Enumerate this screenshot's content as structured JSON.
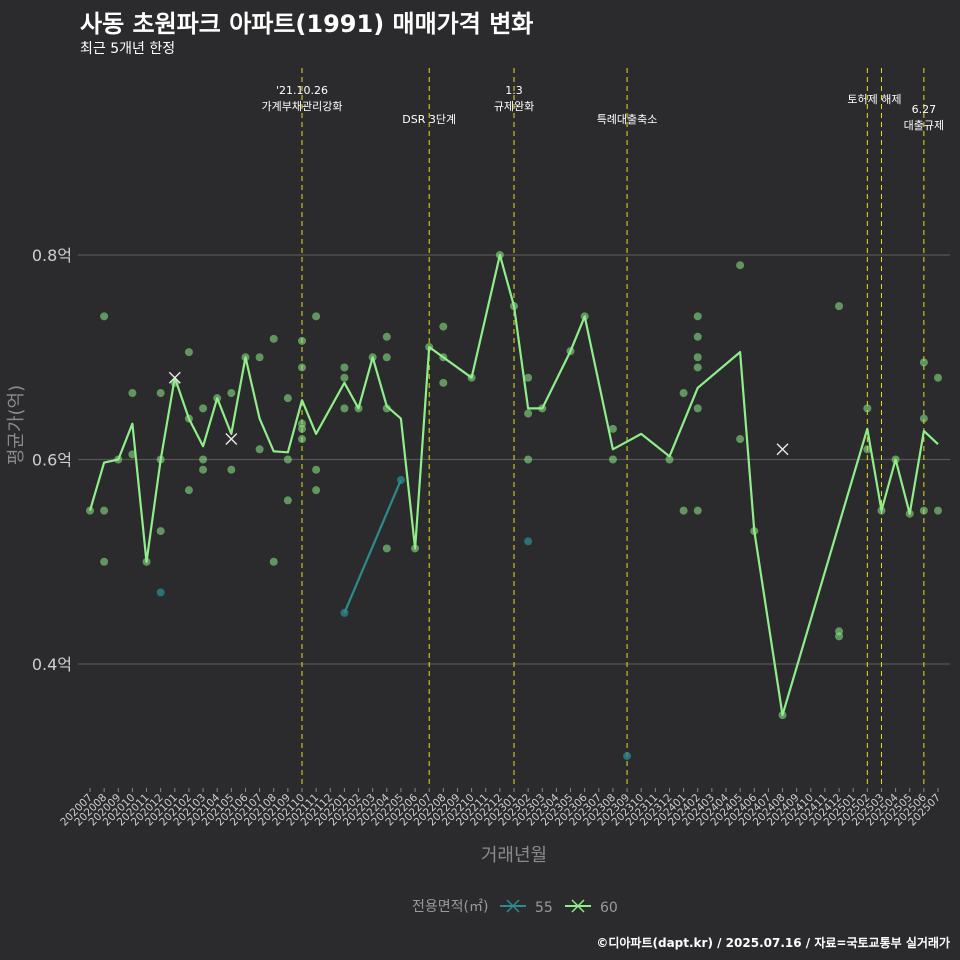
{
  "title": "사동 초원파크 아파트(1991) 매매가격 변화",
  "subtitle": "최근 5개년 한정",
  "caption": "©디아파트(dapt.kr) / 2025.07.16 / 자료=국토교통부 실거래가",
  "colors": {
    "background": "#2b2b2d",
    "grid": "#555555",
    "series_55": "#2a8c8c",
    "series_60": "#90ee8a",
    "event_line": "#e0e020"
  },
  "chart_data": {
    "type": "line",
    "xlabel": "거래년월",
    "ylabel": "평균가(억)",
    "ylim": [
      0.28,
      0.8
    ],
    "yticks": [
      0.4,
      0.6,
      0.8
    ],
    "ytick_labels": [
      "0.4억",
      "0.6억",
      "0.8억"
    ],
    "grid": true,
    "legend": {
      "position": "bottom",
      "title": "전용면적(㎡)",
      "items": [
        "55",
        "60"
      ]
    },
    "categories": [
      "202007",
      "202008",
      "202009",
      "202010",
      "202011",
      "202012",
      "202101",
      "202102",
      "202103",
      "202104",
      "202105",
      "202106",
      "202107",
      "202108",
      "202109",
      "202110",
      "202111",
      "202112",
      "202201",
      "202202",
      "202203",
      "202204",
      "202205",
      "202206",
      "202207",
      "202208",
      "202209",
      "202210",
      "202211",
      "202212",
      "202301",
      "202302",
      "202303",
      "202304",
      "202305",
      "202306",
      "202307",
      "202308",
      "202309",
      "202310",
      "202311",
      "202312",
      "202401",
      "202402",
      "202403",
      "202404",
      "202405",
      "202406",
      "202407",
      "202408",
      "202409",
      "202410",
      "202411",
      "202412",
      "202501",
      "202502",
      "202503",
      "202504",
      "202505",
      "202506",
      "202507"
    ],
    "series": [
      {
        "name": "55",
        "line": [
          [
            "202201",
            0.45
          ],
          [
            "202205",
            0.58
          ]
        ],
        "points": [
          [
            "202012",
            0.47
          ],
          [
            "202201",
            0.45
          ],
          [
            "202205",
            0.58
          ],
          [
            "202302",
            0.52
          ],
          [
            "202309",
            0.31
          ]
        ]
      },
      {
        "name": "60",
        "line": [
          [
            "202007",
            0.55
          ],
          [
            "202008",
            0.597
          ],
          [
            "202009",
            0.6
          ],
          [
            "202010",
            0.635
          ],
          [
            "202011",
            0.5
          ],
          [
            "202012",
            0.6
          ],
          [
            "202101",
            0.68
          ],
          [
            "202102",
            0.64
          ],
          [
            "202103",
            0.613
          ],
          [
            "202104",
            0.66
          ],
          [
            "202105",
            0.625
          ],
          [
            "202106",
            0.7
          ],
          [
            "202107",
            0.64
          ],
          [
            "202108",
            0.608
          ],
          [
            "202109",
            0.607
          ],
          [
            "202110",
            0.658
          ],
          [
            "202111",
            0.625
          ],
          [
            "202201",
            0.675
          ],
          [
            "202202",
            0.65
          ],
          [
            "202203",
            0.7
          ],
          [
            "202204",
            0.652
          ],
          [
            "202205",
            0.64
          ],
          [
            "202206",
            0.513
          ],
          [
            "202207",
            0.71
          ],
          [
            "202208",
            0.7
          ],
          [
            "202210",
            0.68
          ],
          [
            "202212",
            0.8
          ],
          [
            "202301",
            0.75
          ],
          [
            "202302",
            0.65
          ],
          [
            "202303",
            0.65
          ],
          [
            "202305",
            0.706
          ],
          [
            "202306",
            0.74
          ],
          [
            "202308",
            0.61
          ],
          [
            "202310",
            0.625
          ],
          [
            "202312",
            0.603
          ],
          [
            "202402",
            0.67
          ],
          [
            "202405",
            0.705
          ],
          [
            "202406",
            0.53
          ],
          [
            "202408",
            0.35
          ],
          [
            "202502",
            0.63
          ],
          [
            "202503",
            0.55
          ],
          [
            "202504",
            0.6
          ],
          [
            "202505",
            0.547
          ],
          [
            "202506",
            0.628
          ],
          [
            "202507",
            0.615
          ]
        ],
        "points": [
          [
            "202007",
            0.55
          ],
          [
            "202008",
            0.74
          ],
          [
            "202008",
            0.55
          ],
          [
            "202008",
            0.5
          ],
          [
            "202009",
            0.6
          ],
          [
            "202010",
            0.665
          ],
          [
            "202010",
            0.605
          ],
          [
            "202011",
            0.5
          ],
          [
            "202012",
            0.665
          ],
          [
            "202012",
            0.6
          ],
          [
            "202012",
            0.53
          ],
          [
            "202101",
            0.675
          ],
          [
            "202102",
            0.705
          ],
          [
            "202102",
            0.64
          ],
          [
            "202102",
            0.57
          ],
          [
            "202103",
            0.65
          ],
          [
            "202103",
            0.6
          ],
          [
            "202103",
            0.59
          ],
          [
            "202104",
            0.66
          ],
          [
            "202105",
            0.665
          ],
          [
            "202105",
            0.59
          ],
          [
            "202106",
            0.7
          ],
          [
            "202107",
            0.7
          ],
          [
            "202107",
            0.61
          ],
          [
            "202108",
            0.718
          ],
          [
            "202108",
            0.5
          ],
          [
            "202109",
            0.66
          ],
          [
            "202109",
            0.6
          ],
          [
            "202109",
            0.56
          ],
          [
            "202110",
            0.716
          ],
          [
            "202110",
            0.69
          ],
          [
            "202110",
            0.635
          ],
          [
            "202110",
            0.63
          ],
          [
            "202110",
            0.62
          ],
          [
            "202111",
            0.74
          ],
          [
            "202111",
            0.59
          ],
          [
            "202111",
            0.57
          ],
          [
            "202201",
            0.69
          ],
          [
            "202201",
            0.68
          ],
          [
            "202201",
            0.65
          ],
          [
            "202202",
            0.65
          ],
          [
            "202203",
            0.7
          ],
          [
            "202204",
            0.72
          ],
          [
            "202204",
            0.7
          ],
          [
            "202204",
            0.65
          ],
          [
            "202204",
            0.513
          ],
          [
            "202206",
            0.513
          ],
          [
            "202207",
            0.71
          ],
          [
            "202208",
            0.73
          ],
          [
            "202208",
            0.7
          ],
          [
            "202208",
            0.675
          ],
          [
            "202210",
            0.68
          ],
          [
            "202212",
            0.8
          ],
          [
            "202301",
            0.75
          ],
          [
            "202302",
            0.68
          ],
          [
            "202302",
            0.645
          ],
          [
            "202302",
            0.6
          ],
          [
            "202303",
            0.65
          ],
          [
            "202305",
            0.706
          ],
          [
            "202306",
            0.74
          ],
          [
            "202308",
            0.63
          ],
          [
            "202308",
            0.6
          ],
          [
            "202312",
            0.6
          ],
          [
            "202401",
            0.665
          ],
          [
            "202401",
            0.55
          ],
          [
            "202402",
            0.74
          ],
          [
            "202402",
            0.72
          ],
          [
            "202402",
            0.7
          ],
          [
            "202402",
            0.69
          ],
          [
            "202402",
            0.65
          ],
          [
            "202402",
            0.55
          ],
          [
            "202405",
            0.79
          ],
          [
            "202405",
            0.62
          ],
          [
            "202406",
            0.53
          ],
          [
            "202408",
            0.35
          ],
          [
            "202412",
            0.75
          ],
          [
            "202412",
            0.432
          ],
          [
            "202412",
            0.427
          ],
          [
            "202502",
            0.65
          ],
          [
            "202502",
            0.61
          ],
          [
            "202503",
            0.55
          ],
          [
            "202504",
            0.6
          ],
          [
            "202505",
            0.547
          ],
          [
            "202506",
            0.695
          ],
          [
            "202506",
            0.64
          ],
          [
            "202506",
            0.55
          ],
          [
            "202507",
            0.68
          ],
          [
            "202507",
            0.55
          ]
        ],
        "cancelled": [
          [
            "202101",
            0.68
          ],
          [
            "202105",
            0.62
          ],
          [
            "202408",
            0.61
          ]
        ]
      }
    ],
    "annotations": [
      {
        "x": "202110",
        "lines": [
          "'21.10.26",
          "가계부채관리강화"
        ],
        "level": "top"
      },
      {
        "x": "202207",
        "lines": [
          "DSR 3단계"
        ],
        "level": "low"
      },
      {
        "x": "202301",
        "lines": [
          "1.3",
          "규제완화"
        ],
        "level": "top"
      },
      {
        "x": "202309",
        "lines": [
          "특례대출축소"
        ],
        "level": "low"
      },
      {
        "x": "202502",
        "lines": [],
        "level": "none"
      },
      {
        "x": "202503",
        "lines": [
          "토허제 해제"
        ],
        "level": "mid",
        "anchor_x": "202502.5"
      },
      {
        "x": "202506",
        "lines": [
          "6.27",
          "대출규제"
        ],
        "level": "mid2"
      }
    ]
  }
}
